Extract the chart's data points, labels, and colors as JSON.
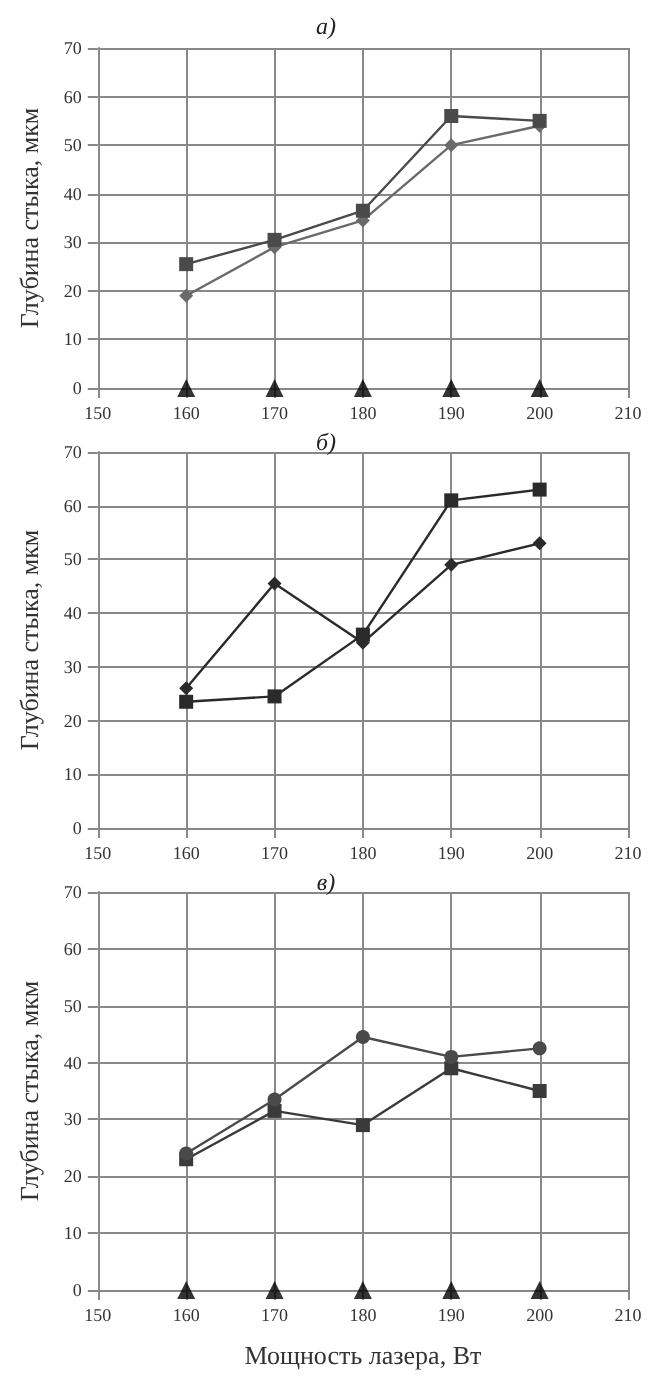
{
  "chart_data": [
    {
      "type": "line",
      "title": "а)",
      "ylabel": "Глубина стыка, мкм",
      "x": [
        160,
        170,
        180,
        190,
        200
      ],
      "xlim": [
        150,
        210
      ],
      "xticks": [
        150,
        160,
        170,
        180,
        190,
        200,
        210
      ],
      "ylim": [
        0,
        70
      ],
      "yticks": [
        0,
        10,
        20,
        30,
        40,
        50,
        60,
        70
      ],
      "grid": true,
      "line_style": "solid",
      "series": [
        {
          "color": "#4a4a4a",
          "marker": "square",
          "values": [
            25.5,
            30.5,
            36.5,
            56,
            55
          ]
        },
        {
          "color": "#6a6a6a",
          "marker": "diamond",
          "values": [
            19,
            29,
            34.5,
            50,
            54
          ]
        },
        {
          "type": "scatter",
          "color": "#000000",
          "marker": "triangle",
          "values": [
            0,
            0,
            0,
            0,
            0
          ]
        }
      ]
    },
    {
      "type": "line",
      "title": "б)",
      "ylabel": "Глубина стыка, мкм",
      "x": [
        160,
        170,
        180,
        190,
        200
      ],
      "xlim": [
        150,
        210
      ],
      "xticks": [
        150,
        160,
        170,
        180,
        190,
        200,
        210
      ],
      "ylim": [
        0,
        70
      ],
      "yticks": [
        0,
        10,
        20,
        30,
        40,
        50,
        60,
        70
      ],
      "grid": true,
      "line_style": "solid",
      "series": [
        {
          "color": "#2a2a2a",
          "marker": "square",
          "values": [
            23.5,
            24.5,
            36,
            61,
            63
          ]
        },
        {
          "color": "#2a2a2a",
          "marker": "diamond",
          "values": [
            26,
            45.5,
            34.5,
            49,
            53
          ]
        }
      ]
    },
    {
      "type": "line",
      "title": "в)",
      "xlabel": "Мощность лазера, Вт",
      "ylabel": "Глубина стыка, мкм",
      "x": [
        160,
        170,
        180,
        190,
        200
      ],
      "xlim": [
        150,
        210
      ],
      "xticks": [
        150,
        160,
        170,
        180,
        190,
        200,
        210
      ],
      "ylim": [
        0,
        70
      ],
      "yticks": [
        0,
        10,
        20,
        30,
        40,
        50,
        60,
        70
      ],
      "grid": true,
      "line_style": "solid",
      "series": [
        {
          "color": "#4a4a4a",
          "marker": "circle",
          "values": [
            24,
            33.5,
            44.5,
            41,
            42.5
          ]
        },
        {
          "color": "#3a3a3a",
          "marker": "square",
          "values": [
            23,
            31.5,
            29,
            39,
            35
          ]
        },
        {
          "type": "scatter",
          "color": "#000000",
          "marker": "triangle",
          "values": [
            0,
            0,
            0,
            0,
            0
          ]
        }
      ]
    }
  ]
}
